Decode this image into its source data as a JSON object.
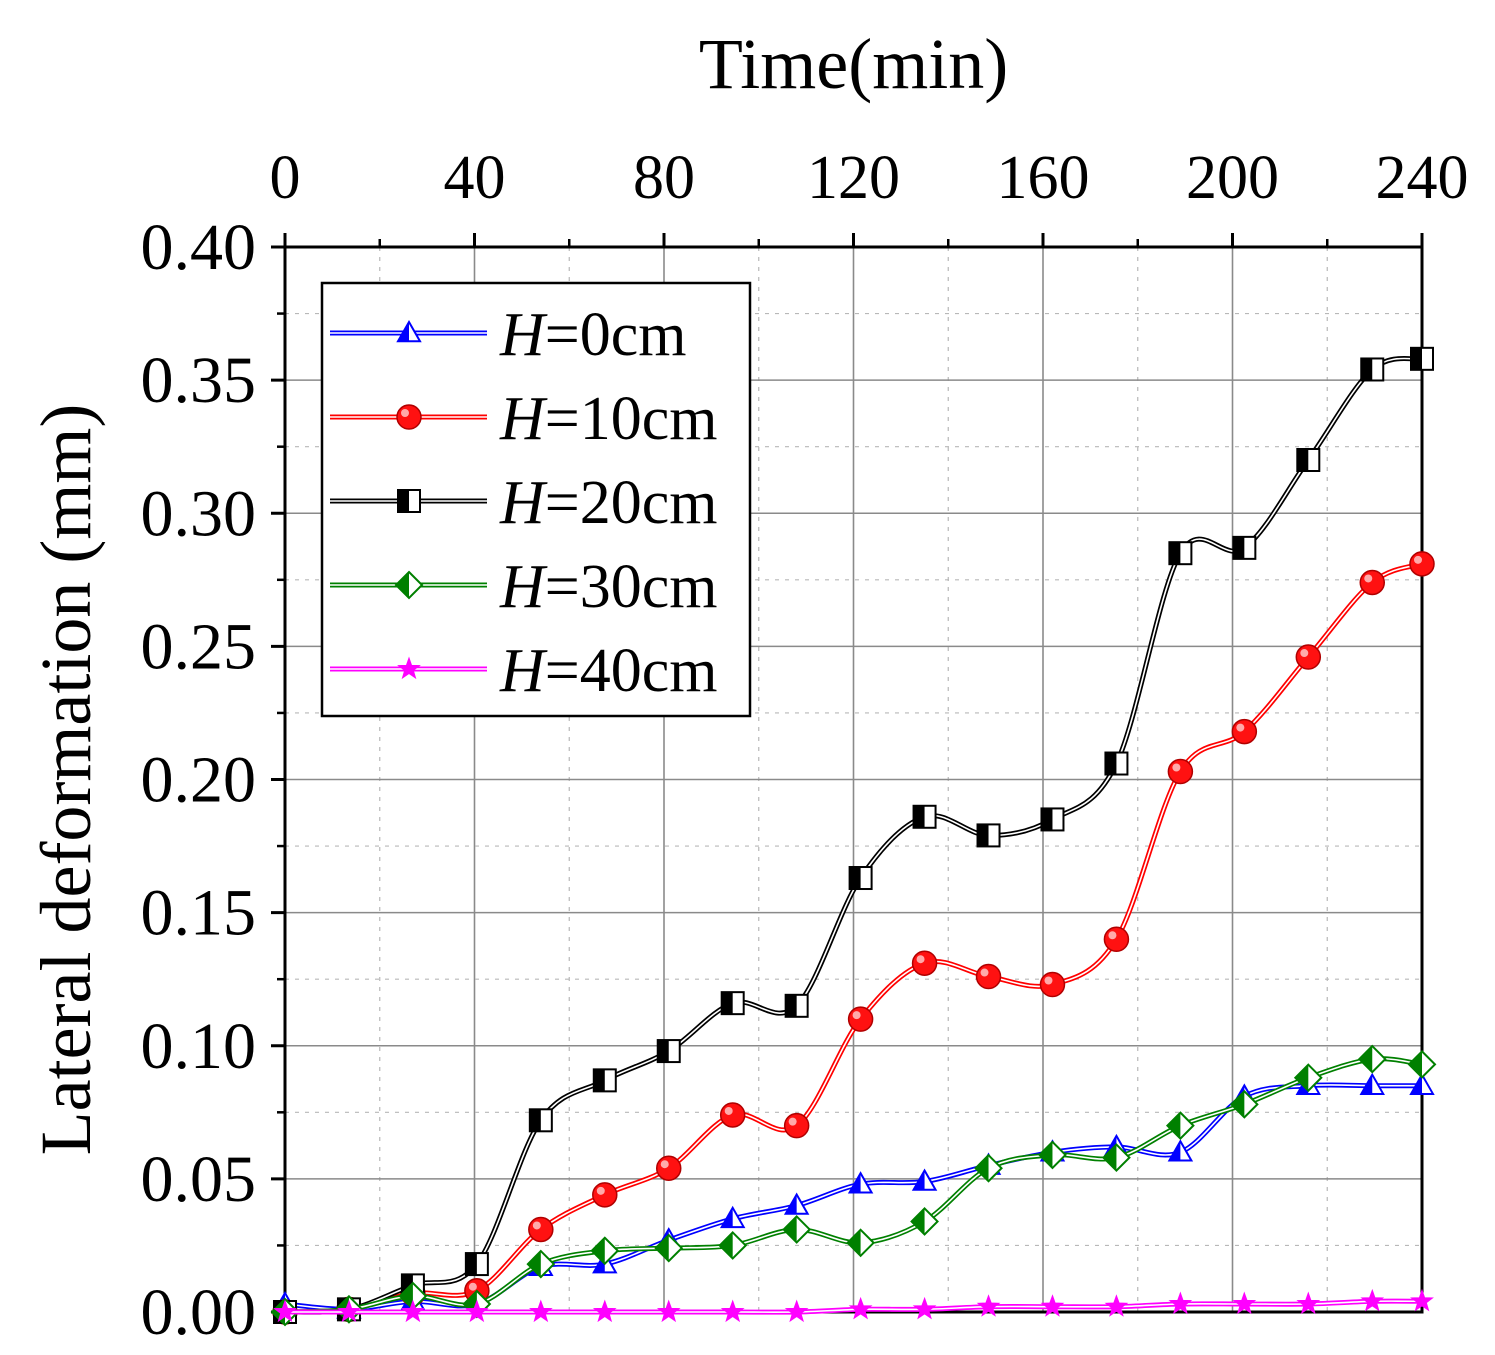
{
  "chart_data": {
    "type": "line",
    "title": "",
    "xlabel": "Time(min)",
    "ylabel": "Lateral deformation (mm)",
    "xlim": [
      0,
      240
    ],
    "ylim": [
      0,
      0.4
    ],
    "x_ticks": [
      "0",
      "40",
      "80",
      "120",
      "160",
      "200",
      "240"
    ],
    "y_ticks": [
      "0.00",
      "0.05",
      "0.10",
      "0.15",
      "0.20",
      "0.25",
      "0.30",
      "0.35",
      "0.40"
    ],
    "x_axis_position": "top",
    "grid": true,
    "legend_position": "top-left",
    "x": [
      0,
      13.5,
      27,
      40.5,
      54,
      67.5,
      81,
      94.5,
      108,
      121.5,
      135,
      148.5,
      162,
      175.5,
      189,
      202.5,
      216,
      229.5,
      240
    ],
    "series": [
      {
        "name": "H=0cm",
        "legend_var": "H",
        "legend_value": "=0cm",
        "color": "#0000ff",
        "marker": "triangle",
        "values": [
          0.003,
          0.001,
          0.004,
          0.003,
          0.017,
          0.018,
          0.027,
          0.035,
          0.04,
          0.048,
          0.049,
          0.055,
          0.06,
          0.062,
          0.06,
          0.081,
          0.085,
          0.085,
          0.085
        ]
      },
      {
        "name": "H=10cm",
        "legend_var": "H",
        "legend_value": "=10cm",
        "color": "#ff0000",
        "marker": "circle",
        "values": [
          0.0,
          0.001,
          0.007,
          0.008,
          0.031,
          0.044,
          0.054,
          0.074,
          0.07,
          0.11,
          0.131,
          0.126,
          0.123,
          0.14,
          0.203,
          0.218,
          0.246,
          0.274,
          0.281
        ]
      },
      {
        "name": "H=20cm",
        "legend_var": "H",
        "legend_value": "=20cm",
        "color": "#000000",
        "marker": "half-square",
        "values": [
          0.0,
          0.001,
          0.01,
          0.018,
          0.072,
          0.087,
          0.098,
          0.116,
          0.115,
          0.163,
          0.186,
          0.179,
          0.185,
          0.206,
          0.285,
          0.287,
          0.32,
          0.354,
          0.358
        ]
      },
      {
        "name": "H=30cm",
        "legend_var": "H",
        "legend_value": "=30cm",
        "color": "#008000",
        "marker": "half-diamond",
        "values": [
          0.0,
          0.001,
          0.006,
          0.003,
          0.018,
          0.023,
          0.024,
          0.025,
          0.031,
          0.026,
          0.034,
          0.054,
          0.059,
          0.058,
          0.07,
          0.078,
          0.088,
          0.095,
          0.093
        ]
      },
      {
        "name": "H=40cm",
        "legend_var": "H",
        "legend_value": "=40cm",
        "color": "#ff00ff",
        "marker": "star",
        "values": [
          0.0,
          0.0,
          0.0,
          0.0,
          0.0,
          0.0,
          0.0,
          0.0,
          0.0,
          0.001,
          0.001,
          0.002,
          0.002,
          0.002,
          0.003,
          0.003,
          0.003,
          0.004,
          0.004
        ]
      }
    ]
  }
}
